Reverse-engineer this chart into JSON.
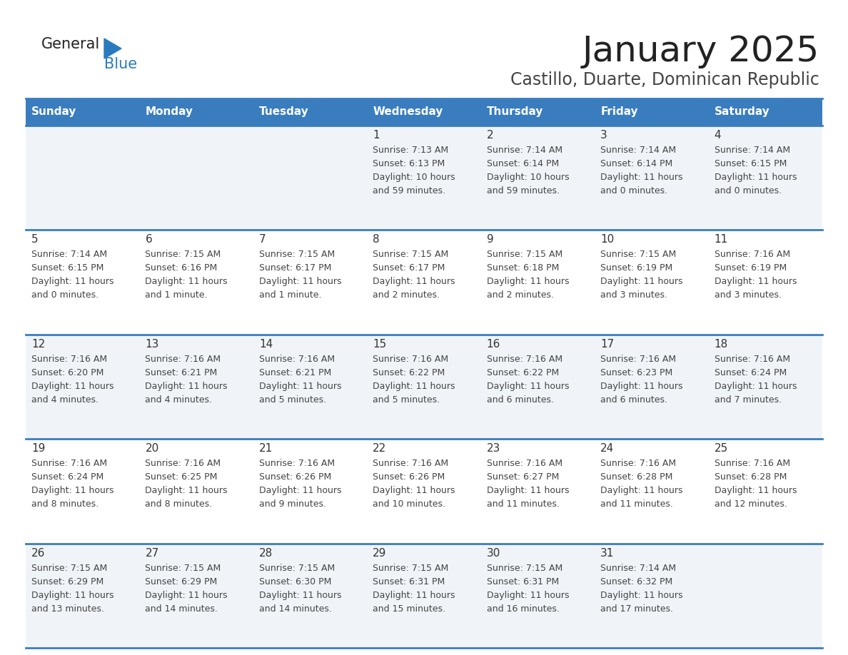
{
  "title": "January 2025",
  "subtitle": "Castillo, Duarte, Dominican Republic",
  "header_bg": "#3a7dbf",
  "header_text": "#ffffff",
  "row_bg_odd": "#f0f4f8",
  "row_bg_even": "#ffffff",
  "day_names": [
    "Sunday",
    "Monday",
    "Tuesday",
    "Wednesday",
    "Thursday",
    "Friday",
    "Saturday"
  ],
  "weeks": [
    [
      {
        "day": "",
        "sunrise": "",
        "sunset": "",
        "daylight_hours": "",
        "daylight_minutes": ""
      },
      {
        "day": "",
        "sunrise": "",
        "sunset": "",
        "daylight_hours": "",
        "daylight_minutes": ""
      },
      {
        "day": "",
        "sunrise": "",
        "sunset": "",
        "daylight_hours": "",
        "daylight_minutes": ""
      },
      {
        "day": "1",
        "sunrise": "7:13 AM",
        "sunset": "6:13 PM",
        "daylight_hours": "10",
        "daylight_minutes": "59 minutes."
      },
      {
        "day": "2",
        "sunrise": "7:14 AM",
        "sunset": "6:14 PM",
        "daylight_hours": "10",
        "daylight_minutes": "59 minutes."
      },
      {
        "day": "3",
        "sunrise": "7:14 AM",
        "sunset": "6:14 PM",
        "daylight_hours": "11",
        "daylight_minutes": "0 minutes."
      },
      {
        "day": "4",
        "sunrise": "7:14 AM",
        "sunset": "6:15 PM",
        "daylight_hours": "11",
        "daylight_minutes": "0 minutes."
      }
    ],
    [
      {
        "day": "5",
        "sunrise": "7:14 AM",
        "sunset": "6:15 PM",
        "daylight_hours": "11",
        "daylight_minutes": "0 minutes."
      },
      {
        "day": "6",
        "sunrise": "7:15 AM",
        "sunset": "6:16 PM",
        "daylight_hours": "11",
        "daylight_minutes": "1 minute."
      },
      {
        "day": "7",
        "sunrise": "7:15 AM",
        "sunset": "6:17 PM",
        "daylight_hours": "11",
        "daylight_minutes": "1 minute."
      },
      {
        "day": "8",
        "sunrise": "7:15 AM",
        "sunset": "6:17 PM",
        "daylight_hours": "11",
        "daylight_minutes": "2 minutes."
      },
      {
        "day": "9",
        "sunrise": "7:15 AM",
        "sunset": "6:18 PM",
        "daylight_hours": "11",
        "daylight_minutes": "2 minutes."
      },
      {
        "day": "10",
        "sunrise": "7:15 AM",
        "sunset": "6:19 PM",
        "daylight_hours": "11",
        "daylight_minutes": "3 minutes."
      },
      {
        "day": "11",
        "sunrise": "7:16 AM",
        "sunset": "6:19 PM",
        "daylight_hours": "11",
        "daylight_minutes": "3 minutes."
      }
    ],
    [
      {
        "day": "12",
        "sunrise": "7:16 AM",
        "sunset": "6:20 PM",
        "daylight_hours": "11",
        "daylight_minutes": "4 minutes."
      },
      {
        "day": "13",
        "sunrise": "7:16 AM",
        "sunset": "6:21 PM",
        "daylight_hours": "11",
        "daylight_minutes": "4 minutes."
      },
      {
        "day": "14",
        "sunrise": "7:16 AM",
        "sunset": "6:21 PM",
        "daylight_hours": "11",
        "daylight_minutes": "5 minutes."
      },
      {
        "day": "15",
        "sunrise": "7:16 AM",
        "sunset": "6:22 PM",
        "daylight_hours": "11",
        "daylight_minutes": "5 minutes."
      },
      {
        "day": "16",
        "sunrise": "7:16 AM",
        "sunset": "6:22 PM",
        "daylight_hours": "11",
        "daylight_minutes": "6 minutes."
      },
      {
        "day": "17",
        "sunrise": "7:16 AM",
        "sunset": "6:23 PM",
        "daylight_hours": "11",
        "daylight_minutes": "6 minutes."
      },
      {
        "day": "18",
        "sunrise": "7:16 AM",
        "sunset": "6:24 PM",
        "daylight_hours": "11",
        "daylight_minutes": "7 minutes."
      }
    ],
    [
      {
        "day": "19",
        "sunrise": "7:16 AM",
        "sunset": "6:24 PM",
        "daylight_hours": "11",
        "daylight_minutes": "8 minutes."
      },
      {
        "day": "20",
        "sunrise": "7:16 AM",
        "sunset": "6:25 PM",
        "daylight_hours": "11",
        "daylight_minutes": "8 minutes."
      },
      {
        "day": "21",
        "sunrise": "7:16 AM",
        "sunset": "6:26 PM",
        "daylight_hours": "11",
        "daylight_minutes": "9 minutes."
      },
      {
        "day": "22",
        "sunrise": "7:16 AM",
        "sunset": "6:26 PM",
        "daylight_hours": "11",
        "daylight_minutes": "10 minutes."
      },
      {
        "day": "23",
        "sunrise": "7:16 AM",
        "sunset": "6:27 PM",
        "daylight_hours": "11",
        "daylight_minutes": "11 minutes."
      },
      {
        "day": "24",
        "sunrise": "7:16 AM",
        "sunset": "6:28 PM",
        "daylight_hours": "11",
        "daylight_minutes": "11 minutes."
      },
      {
        "day": "25",
        "sunrise": "7:16 AM",
        "sunset": "6:28 PM",
        "daylight_hours": "11",
        "daylight_minutes": "12 minutes."
      }
    ],
    [
      {
        "day": "26",
        "sunrise": "7:15 AM",
        "sunset": "6:29 PM",
        "daylight_hours": "11",
        "daylight_minutes": "13 minutes."
      },
      {
        "day": "27",
        "sunrise": "7:15 AM",
        "sunset": "6:29 PM",
        "daylight_hours": "11",
        "daylight_minutes": "14 minutes."
      },
      {
        "day": "28",
        "sunrise": "7:15 AM",
        "sunset": "6:30 PM",
        "daylight_hours": "11",
        "daylight_minutes": "14 minutes."
      },
      {
        "day": "29",
        "sunrise": "7:15 AM",
        "sunset": "6:31 PM",
        "daylight_hours": "11",
        "daylight_minutes": "15 minutes."
      },
      {
        "day": "30",
        "sunrise": "7:15 AM",
        "sunset": "6:31 PM",
        "daylight_hours": "11",
        "daylight_minutes": "16 minutes."
      },
      {
        "day": "31",
        "sunrise": "7:14 AM",
        "sunset": "6:32 PM",
        "daylight_hours": "11",
        "daylight_minutes": "17 minutes."
      },
      {
        "day": "",
        "sunrise": "",
        "sunset": "",
        "daylight_hours": "",
        "daylight_minutes": ""
      }
    ]
  ],
  "logo_general_color": "#222222",
  "logo_blue_color": "#2a7abf",
  "logo_triangle_color": "#2a7abf",
  "cell_border_color": "#3a7dbf",
  "text_color": "#444444",
  "day_number_color": "#333333",
  "title_color": "#222222",
  "subtitle_color": "#444444"
}
